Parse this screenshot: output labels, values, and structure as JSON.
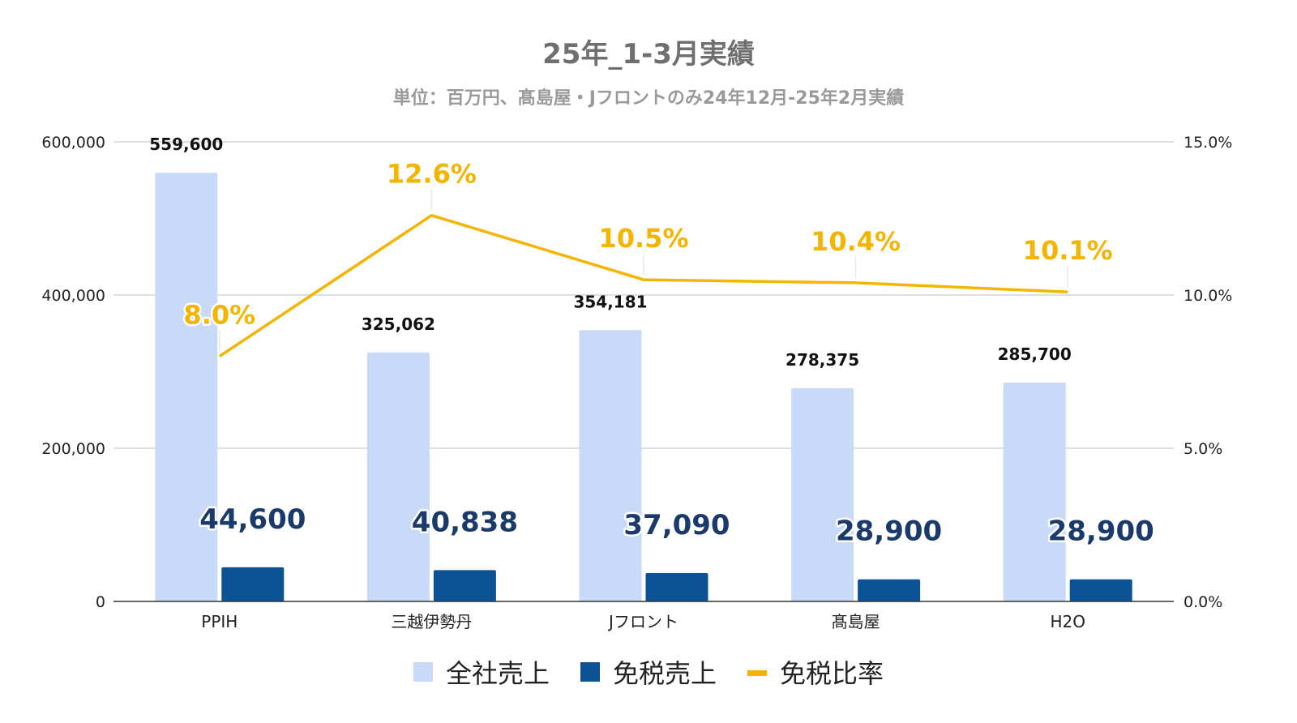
{
  "chart_data": {
    "type": "bar",
    "title": "25年_1-3月実績",
    "subtitle": "単位：百万円、髙島屋・Jフロントのみ24年12月-25年2月実績",
    "categories": [
      "PPIH",
      "三越伊勢丹",
      "Jフロント",
      "髙島屋",
      "H2O"
    ],
    "series": [
      {
        "name": "全社売上",
        "type": "bar",
        "axis": "left",
        "color": "#c9daf8",
        "values": [
          559600,
          325062,
          354181,
          278375,
          285700
        ],
        "labels": [
          "559,600",
          "325,062",
          "354,181",
          "278,375",
          "285,700"
        ]
      },
      {
        "name": "免税売上",
        "type": "bar",
        "axis": "left",
        "color": "#0b5394",
        "values": [
          44600,
          40838,
          37090,
          28900,
          28900
        ],
        "labels": [
          "44,600",
          "40,838",
          "37,090",
          "28,900",
          "28,900"
        ]
      },
      {
        "name": "免税比率",
        "type": "line",
        "axis": "right",
        "color": "#f4b400",
        "values": [
          8.0,
          12.6,
          10.5,
          10.4,
          10.1
        ],
        "labels": [
          "8.0%",
          "12.6%",
          "10.5%",
          "10.4%",
          "10.1%"
        ]
      }
    ],
    "y_left": {
      "ylim": [
        0,
        600000
      ],
      "ticks": [
        0,
        200000,
        400000,
        600000
      ],
      "tick_labels": [
        "0",
        "200,000",
        "400,000",
        "600,000"
      ]
    },
    "y_right": {
      "ylim": [
        0,
        15
      ],
      "ticks": [
        0,
        5,
        10,
        15
      ],
      "tick_labels": [
        "0.0%",
        "5.0%",
        "10.0%",
        "15.0%"
      ]
    },
    "grid": true,
    "legend": "bottom"
  }
}
